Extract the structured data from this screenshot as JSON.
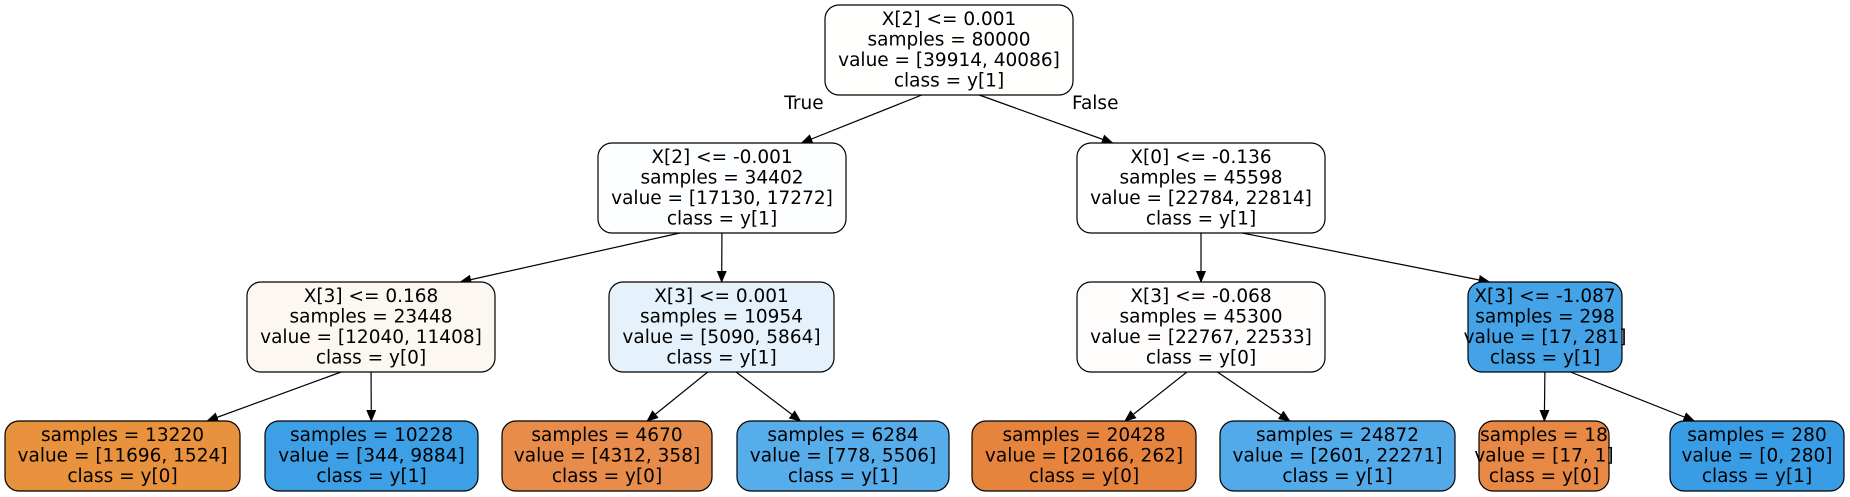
{
  "edge_labels": {
    "true_label": "True",
    "false_label": "False"
  },
  "nodes": [
    {
      "id": "n0",
      "fill": "#fffffe",
      "lines": [
        "X[2] <= 0.001",
        "samples = 80000",
        "value = [39914, 40086]",
        "class = y[1]"
      ]
    },
    {
      "id": "n1",
      "fill": "#fdfeff",
      "lines": [
        "X[2] <= -0.001",
        "samples = 34402",
        "value = [17130, 17272]",
        "class = y[1]"
      ]
    },
    {
      "id": "n2",
      "fill": "#fdf7f2",
      "lines": [
        "X[3] <= 0.168",
        "samples = 23448",
        "value = [12040, 11408]",
        "class = y[0]"
      ]
    },
    {
      "id": "n3",
      "fill": "#e9923d",
      "lines": [
        "samples = 13220",
        "value = [11696, 1524]",
        "class = y[0]"
      ]
    },
    {
      "id": "n4",
      "fill": "#3d9fe6",
      "lines": [
        "samples = 10228",
        "value = [344, 9884]",
        "class = y[1]"
      ]
    },
    {
      "id": "n5",
      "fill": "#e5f2fc",
      "lines": [
        "X[3] <= 0.001",
        "samples = 10954",
        "value = [5090, 5864]",
        "class = y[1]"
      ]
    },
    {
      "id": "n6",
      "fill": "#e78c4b",
      "lines": [
        "samples = 4670",
        "value = [4312, 358]",
        "class = y[0]"
      ]
    },
    {
      "id": "n7",
      "fill": "#57acea",
      "lines": [
        "samples = 6284",
        "value = [778, 5506]",
        "class = y[1]"
      ]
    },
    {
      "id": "n8",
      "fill": "#ffffff",
      "lines": [
        "X[0] <= -0.136",
        "samples = 45598",
        "value = [22784, 22814]",
        "class = y[1]"
      ]
    },
    {
      "id": "n9",
      "fill": "#fffdfc",
      "lines": [
        "X[3] <= -0.068",
        "samples = 45300",
        "value = [22767, 22533]",
        "class = y[0]"
      ]
    },
    {
      "id": "n10",
      "fill": "#e6843d",
      "lines": [
        "samples = 20428",
        "value = [20166, 262]",
        "class = y[0]"
      ]
    },
    {
      "id": "n11",
      "fill": "#53aae8",
      "lines": [
        "samples = 24872",
        "value = [2601, 22271]",
        "class = y[1]"
      ]
    },
    {
      "id": "n12",
      "fill": "#44a3e6",
      "lines": [
        "X[3] <= -1.087",
        "samples = 298",
        "value = [17, 281]",
        "class = y[1]"
      ]
    },
    {
      "id": "n13",
      "fill": "#e78945",
      "lines": [
        "samples = 18",
        "value = [17, 1]",
        "class = y[0]"
      ]
    },
    {
      "id": "n14",
      "fill": "#399de5",
      "lines": [
        "samples = 280",
        "value = [0, 280]",
        "class = y[1]"
      ]
    }
  ],
  "edges": [
    {
      "from": "n0",
      "to": "n1",
      "label": "True"
    },
    {
      "from": "n0",
      "to": "n8",
      "label": "False"
    },
    {
      "from": "n1",
      "to": "n2"
    },
    {
      "from": "n1",
      "to": "n5"
    },
    {
      "from": "n2",
      "to": "n3"
    },
    {
      "from": "n2",
      "to": "n4"
    },
    {
      "from": "n5",
      "to": "n6"
    },
    {
      "from": "n5",
      "to": "n7"
    },
    {
      "from": "n8",
      "to": "n9"
    },
    {
      "from": "n8",
      "to": "n12"
    },
    {
      "from": "n9",
      "to": "n10"
    },
    {
      "from": "n9",
      "to": "n11"
    },
    {
      "from": "n12",
      "to": "n13"
    },
    {
      "from": "n12",
      "to": "n14"
    }
  ]
}
